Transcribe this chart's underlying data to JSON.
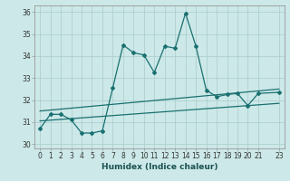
{
  "xlabel": "Humidex (Indice chaleur)",
  "ylabel": "",
  "bg_color": "#cce8e8",
  "line_color": "#1a7070",
  "xlim": [
    -0.5,
    23.5
  ],
  "ylim": [
    29.8,
    36.3
  ],
  "yticks": [
    30,
    31,
    32,
    33,
    34,
    35,
    36
  ],
  "xticks": [
    0,
    1,
    2,
    3,
    4,
    5,
    6,
    7,
    8,
    9,
    10,
    11,
    12,
    13,
    14,
    15,
    16,
    17,
    18,
    19,
    20,
    21,
    23
  ],
  "xtick_labels": [
    "0",
    "1",
    "2",
    "3",
    "4",
    "5",
    "6",
    "7",
    "8",
    "9",
    "10",
    "11",
    "12",
    "13",
    "14",
    "15",
    "16",
    "17",
    "18",
    "19",
    "20",
    "21",
    "23"
  ],
  "main_x": [
    0,
    1,
    2,
    3,
    4,
    5,
    6,
    7,
    8,
    9,
    10,
    11,
    12,
    13,
    14,
    15,
    16,
    17,
    18,
    19,
    20,
    21,
    23
  ],
  "main_y": [
    30.7,
    31.35,
    31.35,
    31.1,
    30.5,
    30.5,
    30.6,
    32.55,
    34.5,
    34.15,
    34.05,
    33.25,
    34.45,
    34.35,
    35.95,
    34.45,
    32.45,
    32.15,
    32.25,
    32.3,
    31.75,
    32.3,
    32.35
  ],
  "lower_line_x": [
    0,
    23
  ],
  "lower_line_y": [
    31.05,
    31.85
  ],
  "upper_line_x": [
    0,
    23
  ],
  "upper_line_y": [
    31.5,
    32.5
  ],
  "grid_color": "#aacccc",
  "tick_fontsize": 5.5,
  "xlabel_fontsize": 6.5
}
